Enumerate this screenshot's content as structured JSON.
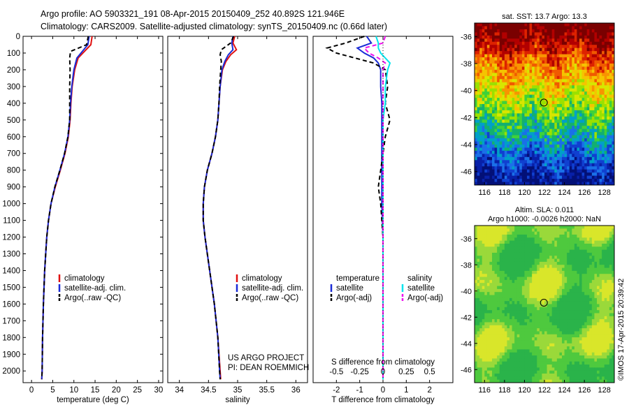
{
  "header": {
    "line1": "Argo profile: AO 5903321_191 08-Apr-2015 20150409_252 40.892S 121.946E",
    "line2": "Climatology: CARS2009. Satellite-adjusted climatology: synTS_20150409.nc (0.66d later)"
  },
  "colors": {
    "climatology": "#e01010",
    "satellite": "#1a2bd6",
    "argo": "#000000",
    "satellite_salinity": "#00e5ee",
    "argo_salinity": "#ee10ee"
  },
  "chart_data": [
    {
      "type": "line",
      "name": "temperature-profile",
      "xlabel": "temperature (deg C)",
      "ylabel": "",
      "xlim": [
        -2,
        31
      ],
      "ylim": [
        2070,
        0
      ],
      "xticks": [
        0,
        5,
        10,
        15,
        20,
        25,
        30
      ],
      "yticks": [
        0,
        100,
        200,
        300,
        400,
        500,
        600,
        700,
        800,
        900,
        1000,
        1100,
        1200,
        1300,
        1400,
        1500,
        1600,
        1700,
        1800,
        1900,
        2000
      ],
      "depth": [
        0,
        50,
        90,
        130,
        200,
        300,
        400,
        500,
        600,
        700,
        800,
        900,
        1000,
        1100,
        1200,
        1400,
        1600,
        1800,
        2000,
        2050
      ],
      "series": [
        {
          "name": "climatology",
          "style": "solid",
          "color": "#e01010",
          "values": [
            14.3,
            14.0,
            12.5,
            11.0,
            10.2,
            9.6,
            9.3,
            9.1,
            8.7,
            7.9,
            6.8,
            5.6,
            4.6,
            4.0,
            3.6,
            3.1,
            2.8,
            2.6,
            2.5,
            2.4
          ]
        },
        {
          "name": "satellite-adj. clim.",
          "style": "solid",
          "color": "#1a2bd6",
          "values": [
            13.6,
            13.3,
            12.0,
            10.7,
            10.0,
            9.5,
            9.2,
            9.0,
            8.6,
            7.8,
            6.7,
            5.5,
            4.6,
            4.0,
            3.6,
            3.1,
            2.8,
            2.6,
            2.5,
            2.4
          ]
        },
        {
          "name": "Argo(..raw -QC)",
          "style": "dashed",
          "color": "#000000",
          "values": [
            13.4,
            13.0,
            9.2,
            9.0,
            9.1,
            9.0,
            9.0,
            9.0,
            8.6,
            7.8,
            6.7,
            5.5,
            4.6,
            4.0,
            3.6,
            3.1,
            2.8,
            2.6,
            2.5,
            2.4
          ]
        }
      ],
      "legend": [
        "climatology",
        "satellite-adj. clim.",
        "Argo(..raw -QC)"
      ]
    },
    {
      "type": "line",
      "name": "salinity-profile",
      "xlabel": "salinity",
      "ylabel": "",
      "xlim": [
        33.8,
        36.2
      ],
      "ylim": [
        2070,
        0
      ],
      "xticks": [
        34,
        34.5,
        35,
        35.5,
        36
      ],
      "xticklabels": [
        "34",
        "34.5",
        "35",
        "35.5",
        "36"
      ],
      "depth": [
        0,
        40,
        80,
        110,
        150,
        200,
        300,
        400,
        500,
        600,
        700,
        800,
        900,
        1000,
        1100,
        1200,
        1400,
        1600,
        1800,
        2000,
        2050
      ],
      "series": [
        {
          "name": "climatology",
          "style": "solid",
          "color": "#e01010",
          "values": [
            34.95,
            34.92,
            34.98,
            34.88,
            34.8,
            34.74,
            34.7,
            34.68,
            34.66,
            34.62,
            34.56,
            34.48,
            34.43,
            34.41,
            34.41,
            34.44,
            34.52,
            34.6,
            34.66,
            34.7,
            34.71
          ]
        },
        {
          "name": "satellite-adj. clim.",
          "style": "solid",
          "color": "#1a2bd6",
          "values": [
            34.92,
            34.9,
            34.92,
            34.84,
            34.78,
            34.73,
            34.7,
            34.68,
            34.66,
            34.62,
            34.56,
            34.48,
            34.43,
            34.41,
            34.41,
            34.44,
            34.52,
            34.6,
            34.66,
            34.69,
            34.7
          ]
        },
        {
          "name": "Argo(..raw -QC)",
          "style": "dashed",
          "color": "#000000",
          "values": [
            34.93,
            34.88,
            34.72,
            34.7,
            34.72,
            34.71,
            34.69,
            34.68,
            34.66,
            34.62,
            34.56,
            34.48,
            34.43,
            34.41,
            34.41,
            34.44,
            34.52,
            34.6,
            34.66,
            34.69,
            34.7
          ]
        }
      ],
      "legend": [
        "climatology",
        "satellite-adj. clim.",
        "Argo(..raw -QC)"
      ],
      "annotation": [
        "US ARGO PROJECT",
        "PI: DEAN ROEMMICH"
      ]
    },
    {
      "type": "line",
      "name": "difference-profile",
      "xlabel": "T difference from climatology",
      "xlabel2": "S difference from climatology",
      "xlim": [
        -3,
        3
      ],
      "ylim": [
        2070,
        0
      ],
      "xticks": [
        -2,
        -1,
        0,
        1,
        2
      ],
      "xticklabels": [
        "-2",
        "-1",
        "0",
        "1",
        "2"
      ],
      "xticks_top": [
        -2.0,
        -1.0,
        0,
        1.0,
        2.0
      ],
      "xticklabels_top": [
        "-0.5",
        "-0.25",
        "0",
        "0.25",
        "0.5"
      ],
      "depth": [
        0,
        40,
        70,
        100,
        130,
        160,
        200,
        300,
        400,
        500,
        600,
        700,
        800,
        900,
        1000,
        1200,
        1400,
        1600,
        1800,
        2000,
        2050
      ],
      "series": [
        {
          "name": "temperature satellite",
          "style": "solid",
          "color": "#1a2bd6",
          "values": [
            -0.7,
            -0.5,
            -1.1,
            -0.8,
            -0.4,
            -0.2,
            -0.1,
            -0.1,
            -0.05,
            -0.05,
            -0.05,
            -0.05,
            -0.05,
            -0.05,
            -0.05,
            0,
            0,
            0,
            0,
            0,
            0
          ]
        },
        {
          "name": "temperature Argo(-adj)",
          "style": "dashed",
          "color": "#000000",
          "values": [
            -0.8,
            -1.6,
            -2.4,
            -2.0,
            -1.2,
            -0.4,
            0.1,
            0.2,
            0.1,
            0.3,
            0.1,
            0.0,
            -0.1,
            -0.2,
            -0.1,
            0,
            0,
            0,
            0,
            0,
            0
          ]
        },
        {
          "name": "salinity satellite",
          "style": "solid",
          "color": "#00e5ee",
          "values": [
            -0.3,
            -0.2,
            -0.2,
            -0.1,
            0.1,
            0.3,
            0.2,
            0.1,
            0.1,
            0.0,
            0.0,
            0.0,
            0.0,
            0.0,
            0.0,
            0,
            0,
            0,
            0,
            0,
            0
          ]
        },
        {
          "name": "salinity Argo(-adj)",
          "style": "dashed",
          "color": "#ee10ee",
          "values": [
            0.1,
            0.0,
            -0.8,
            -0.6,
            -0.2,
            0.1,
            0.0,
            0.0,
            0.0,
            0.0,
            0.0,
            0.0,
            0.0,
            0.0,
            0.0,
            0,
            0,
            0,
            0,
            0,
            0
          ]
        }
      ],
      "legend_headers": [
        "temperature",
        "salinity"
      ],
      "legend": [
        "satellite",
        "Argo(-adj)",
        "satellite",
        "Argo(-adj)"
      ]
    },
    {
      "type": "heatmap",
      "name": "sst-map",
      "title": "sat. SST: 13.7 Argo: 13.3",
      "xlim": [
        115,
        129
      ],
      "ylim": [
        -47,
        -35
      ],
      "xticks": [
        116,
        118,
        120,
        122,
        124,
        126,
        128
      ],
      "yticks": [
        -36,
        -38,
        -40,
        -42,
        -44,
        -46
      ],
      "argo_position": [
        121.946,
        -40.892
      ]
    },
    {
      "type": "heatmap",
      "name": "sla-map",
      "title": [
        "Altim. SLA: 0.011",
        "Argo h1000: -0.0026 h2000: NaN"
      ],
      "xlim": [
        115,
        129
      ],
      "ylim": [
        -47,
        -35
      ],
      "xticks": [
        116,
        118,
        120,
        122,
        124,
        126,
        128
      ],
      "yticks": [
        -36,
        -38,
        -40,
        -42,
        -44,
        -46
      ],
      "argo_position": [
        121.946,
        -40.892
      ]
    }
  ],
  "credit": "©IMOS 17-Apr-2015 20:39:42"
}
